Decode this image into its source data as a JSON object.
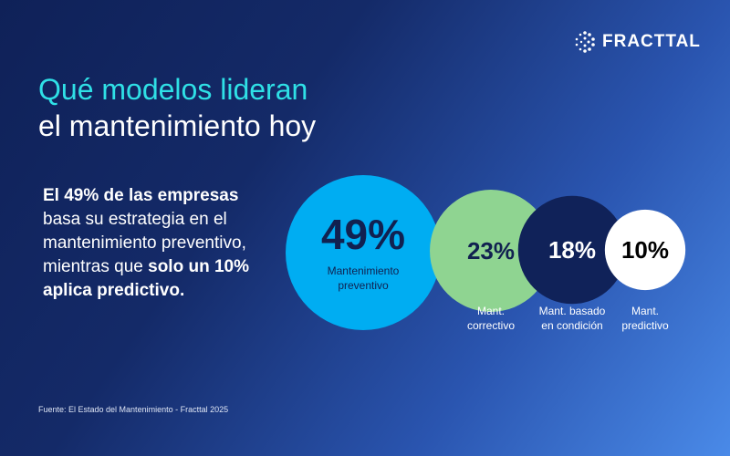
{
  "brand": {
    "name": "FRACTTAL",
    "logo_icon": "dot-cluster-icon"
  },
  "title": {
    "line1": "Qué modelos lideran",
    "line2": "el mantenimiento hoy"
  },
  "description": {
    "bold1": "El 49% de las empresas",
    "text": " basa su estrategia en el mantenimiento preventivo, mientras que ",
    "bold2": "solo un 10% aplica predictivo."
  },
  "source": "Fuente: El Estado del Mantenimiento - Fracttal 2025",
  "chart_data": {
    "type": "bubble",
    "categories": [
      "Mantenimiento preventivo",
      "Mant. correctivo",
      "Mant. basado en condición",
      "Mant. predictivo"
    ],
    "values": [
      49,
      23,
      18,
      10
    ],
    "labels": [
      "49%",
      "23%",
      "18%",
      "10%"
    ],
    "colors": [
      "#00adf2",
      "#8fd491",
      "#102259",
      "#ffffff"
    ],
    "text_colors": [
      "#112150",
      "#112150",
      "#ffffff",
      "#000000"
    ]
  }
}
